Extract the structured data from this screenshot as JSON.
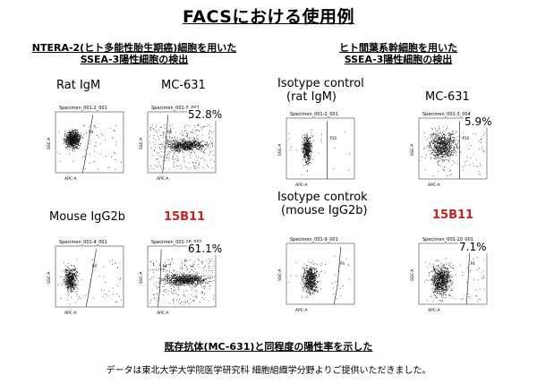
{
  "title": "FACSにおける使用例",
  "left_panel": {
    "heading_line1": "NTERA-2(ヒト多能性胎生期癌)細胞を用いた",
    "heading_line2": "SSEA-3陽性細胞の検出"
  },
  "right_panel": {
    "heading_line1": "ヒト間葉系幹細胞を用いた",
    "heading_line2": "SSEA-3陽性細胞の検出"
  },
  "plots": [
    {
      "label": "Rat IgM",
      "label_color": "#000000",
      "specimen": "Specimen_001-2_001",
      "gate": "P4",
      "percent": ""
    },
    {
      "label": "MC-631",
      "label_color": "#000000",
      "specimen": "Specimen_001-3_001",
      "gate": "P4",
      "percent": "52.8%"
    },
    {
      "label": "Mouse IgG2b",
      "label_color": "#000000",
      "specimen": "Specimen_001-4_001",
      "gate": "P4",
      "percent": ""
    },
    {
      "label": "15B11",
      "label_color": "#cc1f1f",
      "specimen": "Specimen_001-16_001",
      "gate": "P4",
      "percent": "61.1%"
    },
    {
      "label": "Isotype control (rat IgM)",
      "label_line1": "Isotype control",
      "label_line2": "(rat IgM)",
      "label_color": "#000000",
      "specimen": "Specimen_001-2_001",
      "gate": "P10",
      "percent": ""
    },
    {
      "label": "MC-631",
      "label_color": "#000000",
      "specimen": "Specimen_001-3_004",
      "gate": "P10",
      "percent": "5.9%"
    },
    {
      "label": "Isotype controk (mouse IgG2b)",
      "label_line1": "Isotype controk",
      "label_line2": "(mouse IgG2b)",
      "label_color": "#000000",
      "specimen": "Specimen_001-9_001",
      "gate": "P4",
      "percent": ""
    },
    {
      "label": "15B11",
      "label_color": "#cc1f1f",
      "specimen": "Specimen_001-10_001",
      "gate": "P4",
      "percent": "7.1%"
    }
  ],
  "axis": {
    "x": "APC-A",
    "y": "SSC-A"
  },
  "footer_line1": "既存抗体(MC-631)と同程度の陽性率を示した",
  "footer_line2": "データは東北大学大学院医学研究科 細胞組織学分野よりご提供いただきました。"
}
